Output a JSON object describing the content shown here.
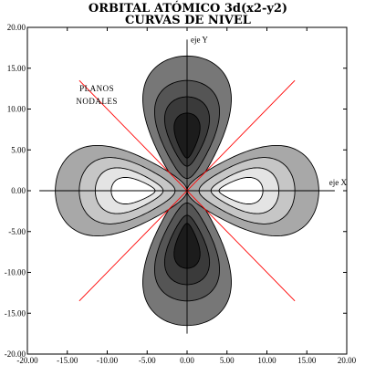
{
  "chart_data": {
    "type": "contour",
    "title": "ORBITAL ATÓMICO 3d(x2-y2)",
    "subtitle": "CURVAS DE NIVEL",
    "xlim": [
      -20,
      20
    ],
    "ylim": [
      -20,
      20
    ],
    "x_ticks": [
      "-20.00",
      "-15.00",
      "-10.00",
      "-5.00",
      "0.00",
      "5.00",
      "10.00",
      "15.00",
      "20.00"
    ],
    "y_ticks": [
      "20.00",
      "15.00",
      "10.00",
      "5.00",
      "0.00",
      "-5.00",
      "-10.00",
      "-15.00",
      "-20.00"
    ],
    "tick_values": [
      -20,
      -15,
      -10,
      -5,
      0,
      5,
      10,
      15,
      20
    ],
    "x_axis_label": "eje X",
    "y_axis_label": "eje Y",
    "annotation": [
      "PLANOS",
      "NODALES"
    ],
    "nodal_plane_color": "#ff0000",
    "lobes": [
      {
        "axis": "y",
        "sign": 1,
        "center": [
          0,
          7
        ],
        "levels": [
          {
            "extent": [
              0,
              16.5
            ],
            "half_width": 7.5,
            "color": "#777777"
          },
          {
            "extent": [
              1.5,
              13.5
            ],
            "half_width": 5.5,
            "color": "#555555"
          },
          {
            "extent": [
              3,
              11.5
            ],
            "half_width": 3.8,
            "color": "#3a3a3a"
          },
          {
            "extent": [
              4,
              9.5
            ],
            "half_width": 2.2,
            "color": "#1c1c1c"
          }
        ]
      },
      {
        "axis": "y",
        "sign": -1,
        "center": [
          0,
          -7
        ],
        "levels": [
          {
            "extent": [
              0,
              16.5
            ],
            "half_width": 7.5,
            "color": "#777777"
          },
          {
            "extent": [
              1.5,
              13.5
            ],
            "half_width": 5.5,
            "color": "#555555"
          },
          {
            "extent": [
              3,
              11.5
            ],
            "half_width": 3.8,
            "color": "#3a3a3a"
          },
          {
            "extent": [
              4,
              9.5
            ],
            "half_width": 2.2,
            "color": "#1c1c1c"
          }
        ]
      },
      {
        "axis": "x",
        "sign": 1,
        "center": [
          7,
          0
        ],
        "levels": [
          {
            "extent": [
              0,
              16.5
            ],
            "half_width": 7.5,
            "color": "#a8a8a8"
          },
          {
            "extent": [
              1.5,
              13.5
            ],
            "half_width": 5.5,
            "color": "#c6c6c6"
          },
          {
            "extent": [
              3,
              11.5
            ],
            "half_width": 3.8,
            "color": "#e4e4e4"
          },
          {
            "extent": [
              4,
              9.5
            ],
            "half_width": 2.2,
            "color": "#ffffff"
          }
        ]
      },
      {
        "axis": "x",
        "sign": -1,
        "center": [
          -7,
          0
        ],
        "levels": [
          {
            "extent": [
              0,
              16.5
            ],
            "half_width": 7.5,
            "color": "#a8a8a8"
          },
          {
            "extent": [
              1.5,
              13.5
            ],
            "half_width": 5.5,
            "color": "#c6c6c6"
          },
          {
            "extent": [
              3,
              11.5
            ],
            "half_width": 3.8,
            "color": "#e4e4e4"
          },
          {
            "extent": [
              4,
              9.5
            ],
            "half_width": 2.2,
            "color": "#ffffff"
          }
        ]
      }
    ]
  }
}
